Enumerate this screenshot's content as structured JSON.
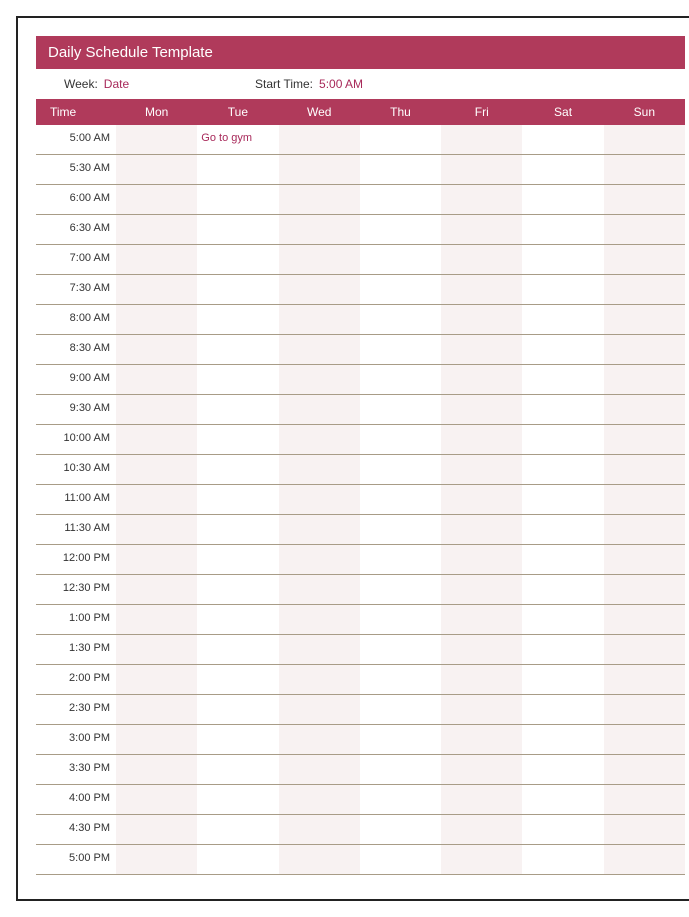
{
  "colors": {
    "brand": "#b03a5b",
    "accent_text": "#a8295a",
    "stripe": "#f8f2f2",
    "row_border": "#a89c87",
    "page_border": "#222222",
    "background": "#ffffff"
  },
  "title": "Daily Schedule Template",
  "meta": {
    "week_label": "Week:",
    "week_value": "Date",
    "start_label": "Start Time:",
    "start_value": "5:00 AM"
  },
  "header": {
    "time": "Time",
    "days": [
      "Mon",
      "Tue",
      "Wed",
      "Thu",
      "Fri",
      "Sat",
      "Sun"
    ]
  },
  "rows": [
    {
      "time": "5:00 AM",
      "cells": [
        "",
        "Go to gym",
        "",
        "",
        "",
        "",
        ""
      ]
    },
    {
      "time": "5:30 AM",
      "cells": [
        "",
        "",
        "",
        "",
        "",
        "",
        ""
      ]
    },
    {
      "time": "6:00 AM",
      "cells": [
        "",
        "",
        "",
        "",
        "",
        "",
        ""
      ]
    },
    {
      "time": "6:30 AM",
      "cells": [
        "",
        "",
        "",
        "",
        "",
        "",
        ""
      ]
    },
    {
      "time": "7:00 AM",
      "cells": [
        "",
        "",
        "",
        "",
        "",
        "",
        ""
      ]
    },
    {
      "time": "7:30 AM",
      "cells": [
        "",
        "",
        "",
        "",
        "",
        "",
        ""
      ]
    },
    {
      "time": "8:00 AM",
      "cells": [
        "",
        "",
        "",
        "",
        "",
        "",
        ""
      ]
    },
    {
      "time": "8:30 AM",
      "cells": [
        "",
        "",
        "",
        "",
        "",
        "",
        ""
      ]
    },
    {
      "time": "9:00 AM",
      "cells": [
        "",
        "",
        "",
        "",
        "",
        "",
        ""
      ]
    },
    {
      "time": "9:30 AM",
      "cells": [
        "",
        "",
        "",
        "",
        "",
        "",
        ""
      ]
    },
    {
      "time": "10:00 AM",
      "cells": [
        "",
        "",
        "",
        "",
        "",
        "",
        ""
      ]
    },
    {
      "time": "10:30 AM",
      "cells": [
        "",
        "",
        "",
        "",
        "",
        "",
        ""
      ]
    },
    {
      "time": "11:00 AM",
      "cells": [
        "",
        "",
        "",
        "",
        "",
        "",
        ""
      ]
    },
    {
      "time": "11:30 AM",
      "cells": [
        "",
        "",
        "",
        "",
        "",
        "",
        ""
      ]
    },
    {
      "time": "12:00 PM",
      "cells": [
        "",
        "",
        "",
        "",
        "",
        "",
        ""
      ]
    },
    {
      "time": "12:30 PM",
      "cells": [
        "",
        "",
        "",
        "",
        "",
        "",
        ""
      ]
    },
    {
      "time": "1:00 PM",
      "cells": [
        "",
        "",
        "",
        "",
        "",
        "",
        ""
      ]
    },
    {
      "time": "1:30 PM",
      "cells": [
        "",
        "",
        "",
        "",
        "",
        "",
        ""
      ]
    },
    {
      "time": "2:00 PM",
      "cells": [
        "",
        "",
        "",
        "",
        "",
        "",
        ""
      ]
    },
    {
      "time": "2:30 PM",
      "cells": [
        "",
        "",
        "",
        "",
        "",
        "",
        ""
      ]
    },
    {
      "time": "3:00 PM",
      "cells": [
        "",
        "",
        "",
        "",
        "",
        "",
        ""
      ]
    },
    {
      "time": "3:30 PM",
      "cells": [
        "",
        "",
        "",
        "",
        "",
        "",
        ""
      ]
    },
    {
      "time": "4:00 PM",
      "cells": [
        "",
        "",
        "",
        "",
        "",
        "",
        ""
      ]
    },
    {
      "time": "4:30 PM",
      "cells": [
        "",
        "",
        "",
        "",
        "",
        "",
        ""
      ]
    },
    {
      "time": "5:00 PM",
      "cells": [
        "",
        "",
        "",
        "",
        "",
        "",
        ""
      ]
    }
  ],
  "striped_day_indices": [
    0,
    2,
    4,
    6
  ]
}
